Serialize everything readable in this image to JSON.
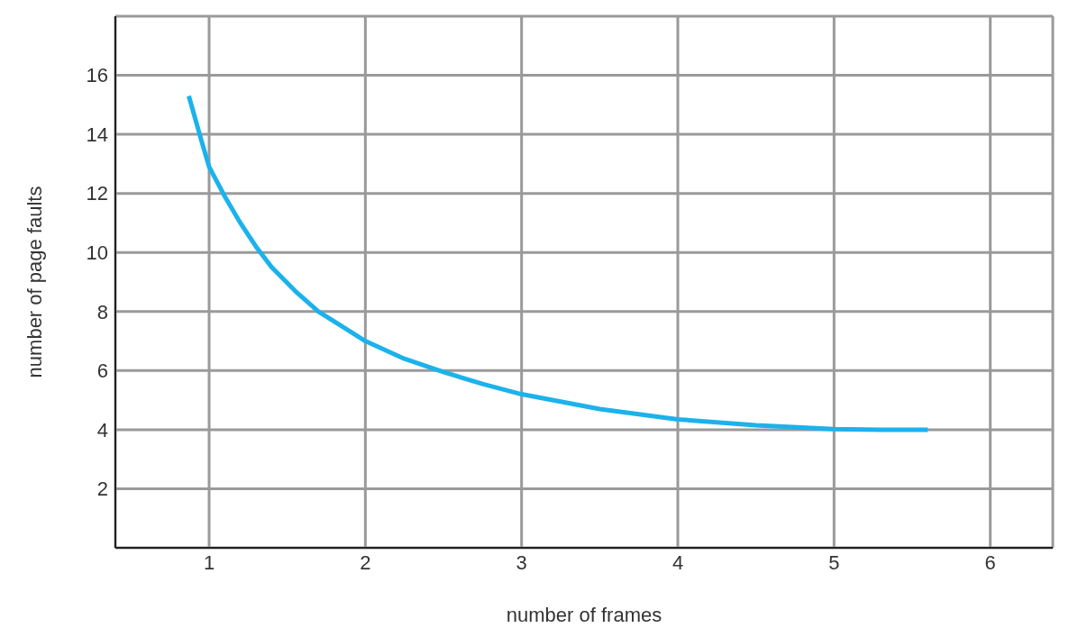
{
  "chart_data": {
    "type": "line",
    "xlabel": "number of frames",
    "ylabel": "number of page faults",
    "series": [
      {
        "color": "#1cb2ec",
        "x": [
          0.87,
          0.95,
          1,
          1.1,
          1.2,
          1.3,
          1.4,
          1.55,
          1.7,
          1.85,
          2,
          2.25,
          2.5,
          2.75,
          3,
          3.5,
          4,
          4.5,
          5,
          5.3,
          5.6
        ],
        "values": [
          15.3,
          13.8,
          12.9,
          11.9,
          11,
          10.2,
          9.5,
          8.7,
          8,
          7.5,
          7,
          6.4,
          5.95,
          5.55,
          5.2,
          4.7,
          4.35,
          4.15,
          4.02,
          4,
          4
        ]
      }
    ],
    "xlim": [
      0.4,
      6.4
    ],
    "xticks": [
      1,
      2,
      3,
      4,
      5,
      6
    ],
    "ylim": [
      0,
      18
    ],
    "yticks": [
      2,
      4,
      6,
      8,
      10,
      12,
      14,
      16
    ],
    "grid": true,
    "marker": "none",
    "line_style": "solid"
  }
}
